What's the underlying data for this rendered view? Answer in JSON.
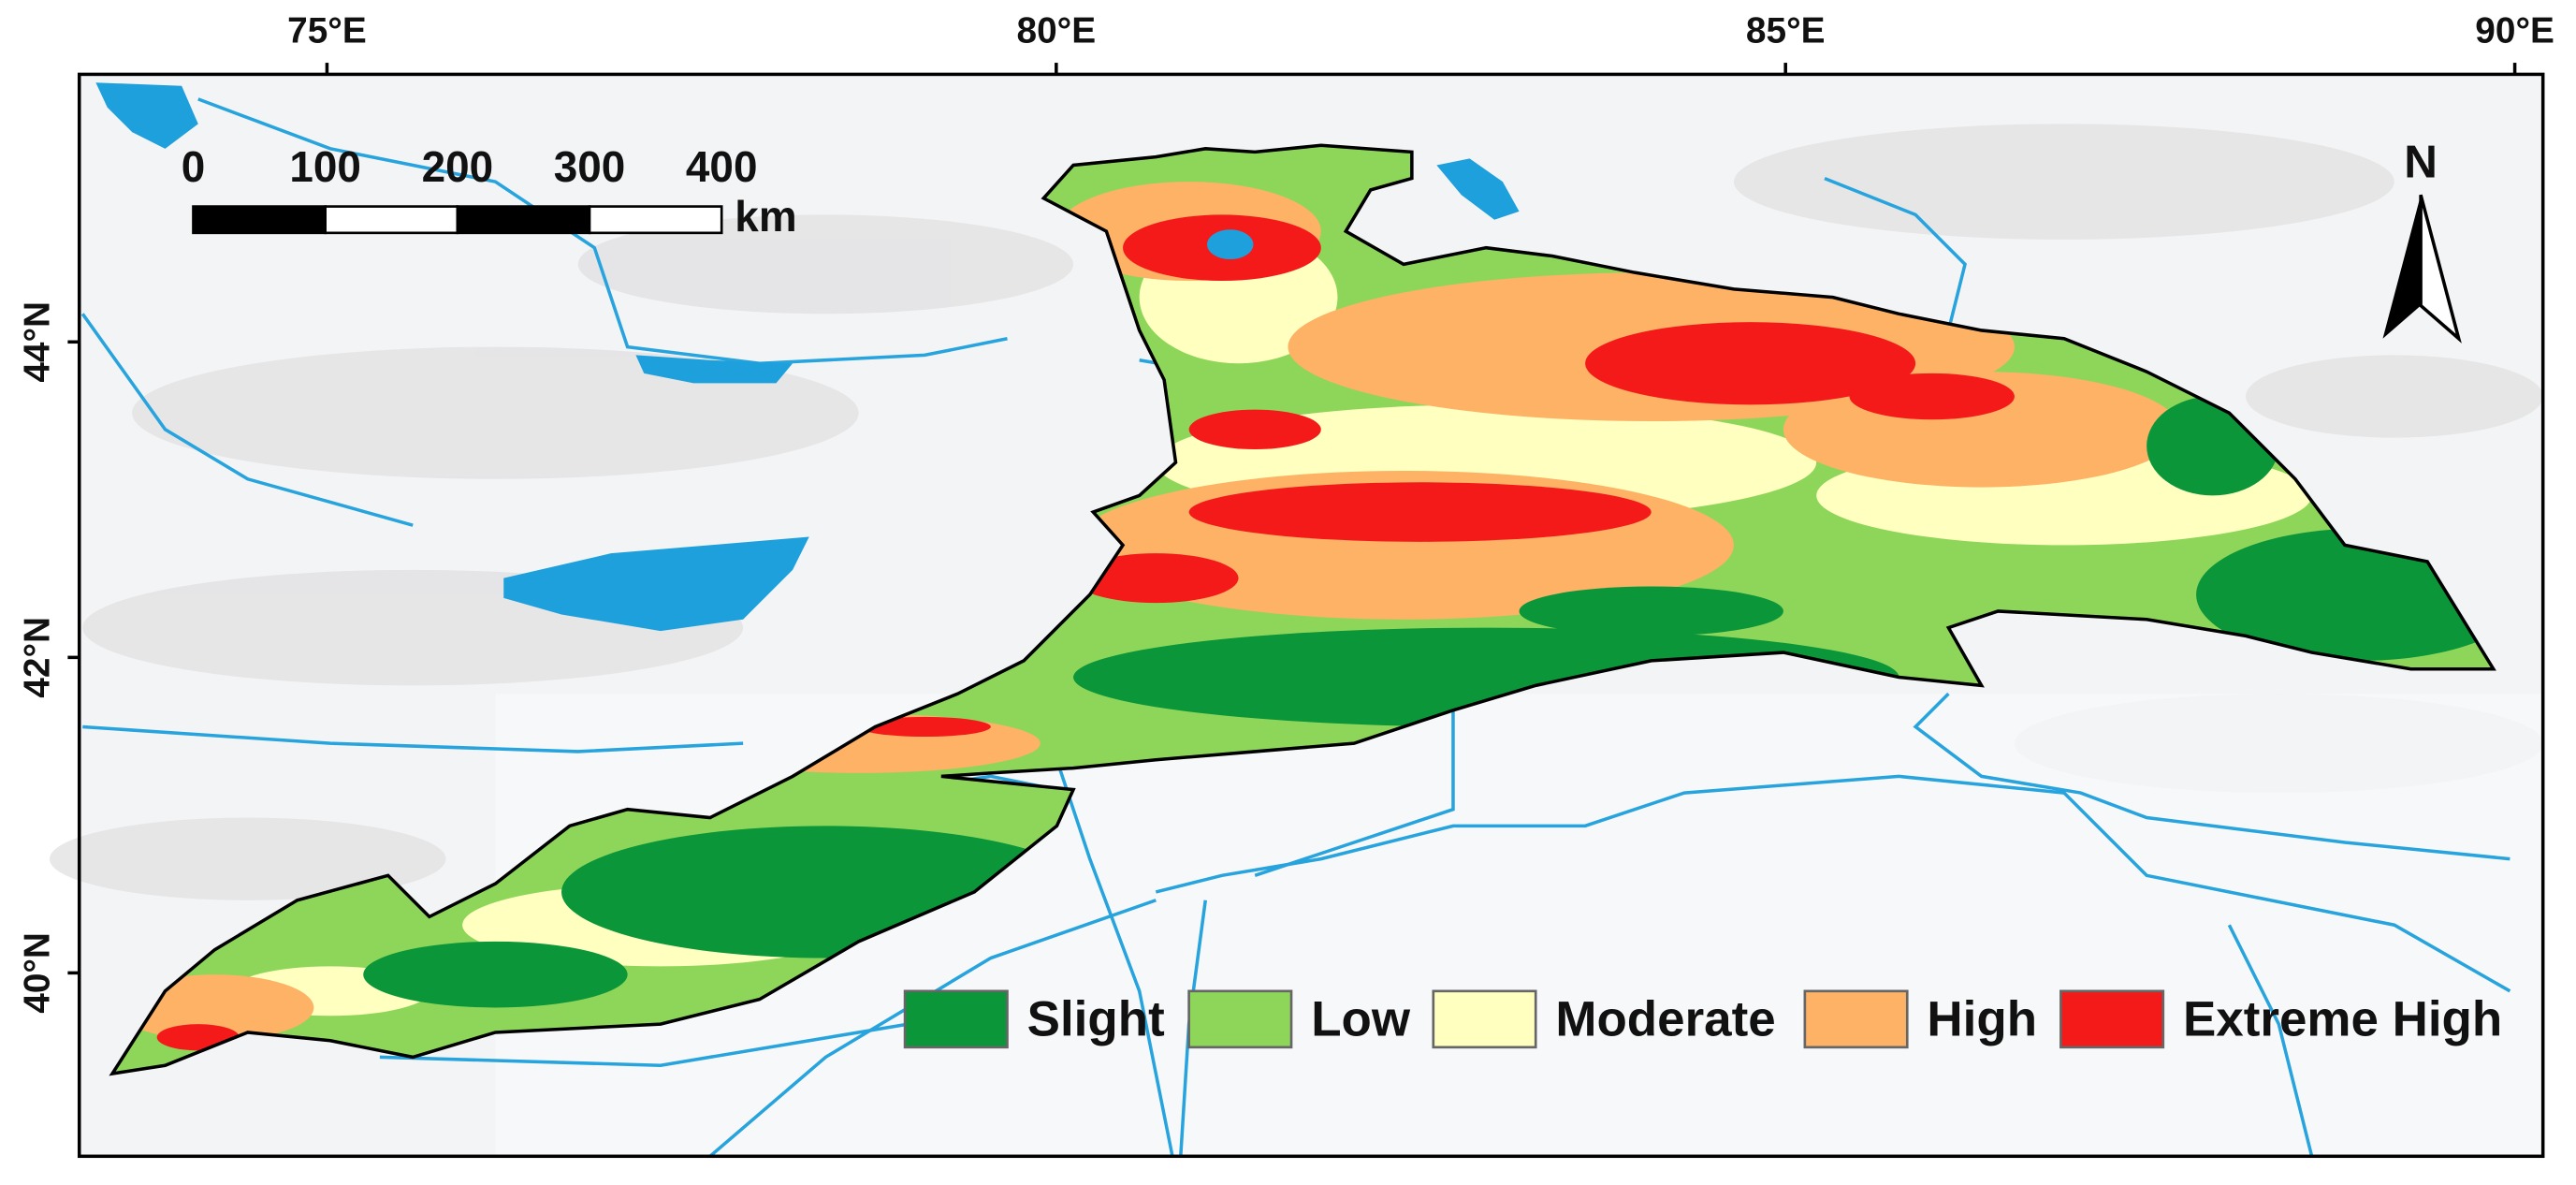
{
  "map": {
    "lon_ticks": [
      {
        "value": 75,
        "label": "75°E"
      },
      {
        "value": 80,
        "label": "80°E"
      },
      {
        "value": 85,
        "label": "85°E"
      },
      {
        "value": 90,
        "label": "90°E"
      }
    ],
    "lat_ticks": [
      {
        "value": 44,
        "label": "44°N"
      },
      {
        "value": 42,
        "label": "42°N"
      },
      {
        "value": 40,
        "label": "40°N"
      }
    ],
    "scale_bar": {
      "ticks": [
        0,
        100,
        200,
        300,
        400
      ],
      "unit": "km"
    },
    "north_arrow": "N",
    "legend": [
      {
        "label": "Slight",
        "color": "#0a9639"
      },
      {
        "label": "Low",
        "color": "#8ed65a"
      },
      {
        "label": "Moderate",
        "color": "#ffffc0"
      },
      {
        "label": "High",
        "color": "#fdb265"
      },
      {
        "label": "Extreme High",
        "color": "#f51a1a"
      }
    ]
  }
}
